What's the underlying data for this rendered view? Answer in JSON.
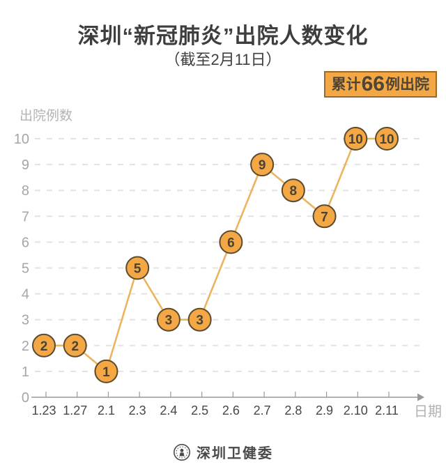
{
  "header": {
    "title": "深圳“新冠肺炎”出院人数变化",
    "subtitle": "（截至2月11日）"
  },
  "summary_badge": {
    "prefix": "累计",
    "number": "66",
    "suffix": "例出院"
  },
  "footer": {
    "logo_icon": "shenzhen-health-commission-seal",
    "brand": "深圳卫健委"
  },
  "colors": {
    "accent_orange": "#F3A845",
    "line_orange": "#EDB45F",
    "point_border_brown": "#5B4A2E",
    "point_text": "#4C4234",
    "badge_border": "#9A6A2B",
    "badge_text": "#4F4537",
    "grid_gray": "#E3E3E3",
    "axis_gray": "#999999",
    "ytick_gray": "#A6A6A6",
    "xtick_dark": "#474747",
    "axis_label_gray": "#B3B3B3",
    "title_dark": "#3E3E3E"
  },
  "chart_data": {
    "type": "line",
    "title": "深圳“新冠肺炎”出院人数变化",
    "subtitle": "（截至2月11日）",
    "x": [
      "1.23",
      "1.27",
      "2.1",
      "2.3",
      "2.4",
      "2.5",
      "2.6",
      "2.7",
      "2.8",
      "2.9",
      "2.10",
      "2.11"
    ],
    "values": [
      2,
      2,
      1,
      5,
      3,
      3,
      6,
      9,
      8,
      7,
      10,
      10
    ],
    "xlabel": "日期",
    "ylabel": "出院例数",
    "ylim": [
      0,
      10
    ],
    "yticks": [
      0,
      1,
      2,
      3,
      4,
      5,
      6,
      7,
      8,
      9,
      10
    ],
    "grid": "horizontal-dashed",
    "legend": "none",
    "point_labels": true,
    "total_note": "累计66例出院"
  }
}
